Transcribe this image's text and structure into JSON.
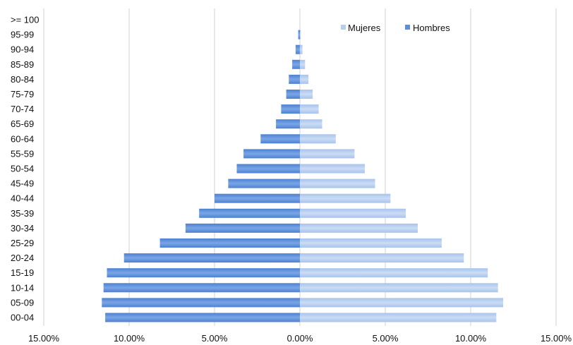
{
  "chart_data": {
    "type": "bar",
    "orientation": "horizontal",
    "subtype": "population-pyramid",
    "categories": [
      "00-04",
      "05-09",
      "10-14",
      "15-19",
      "20-24",
      "25-29",
      "30-34",
      "35-39",
      "40-44",
      "45-49",
      "50-54",
      "55-59",
      "60-64",
      "65-69",
      "70-74",
      "75-79",
      "80-84",
      "85-89",
      "90-94",
      "95-99",
      ">= 100"
    ],
    "series": [
      {
        "name": "Mujeres",
        "color": "#b7cdee",
        "side": "right",
        "values": [
          11.5,
          11.9,
          11.6,
          11.0,
          9.6,
          8.3,
          6.9,
          6.2,
          5.3,
          4.4,
          3.8,
          3.2,
          2.1,
          1.3,
          1.1,
          0.75,
          0.5,
          0.3,
          0.15,
          0.05,
          0.0
        ]
      },
      {
        "name": "Hombres",
        "color": "#5b8fdc",
        "side": "left",
        "values": [
          11.4,
          11.6,
          11.5,
          11.3,
          10.3,
          8.2,
          6.7,
          5.9,
          5.0,
          4.2,
          3.7,
          3.3,
          2.3,
          1.4,
          1.1,
          0.8,
          0.65,
          0.45,
          0.25,
          0.1,
          0.0
        ]
      }
    ],
    "xlim": [
      -15,
      15
    ],
    "x_ticks": [
      "15.00%",
      "10.00%",
      "5.00%",
      "0.00%",
      "5.00%",
      "10.00%",
      "15.00%"
    ],
    "x_tick_values": [
      -15,
      -10,
      -5,
      0,
      5,
      10,
      15
    ],
    "title": "",
    "xlabel": "",
    "ylabel": "",
    "grid": "vertical",
    "legend_position": "top-right"
  }
}
